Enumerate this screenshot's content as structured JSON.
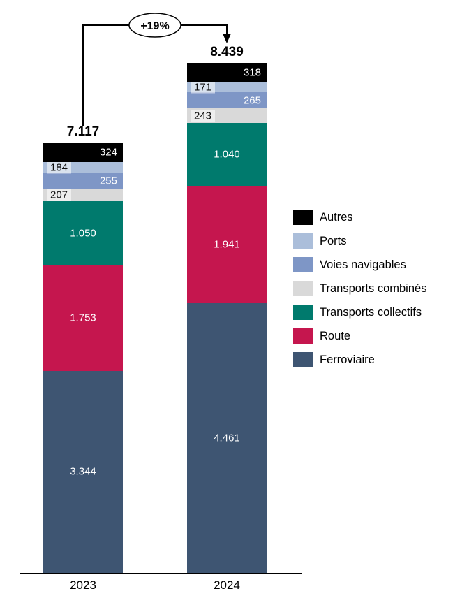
{
  "chart_data": {
    "type": "bar",
    "stacked": true,
    "title": "",
    "xlabel": "",
    "ylabel": "",
    "categories": [
      "2023",
      "2024"
    ],
    "totals": [
      "7.117",
      "8.439"
    ],
    "annotation": {
      "label": "+19%",
      "from": "2023",
      "to": "2024"
    },
    "series": [
      {
        "name": "Ferroviaire",
        "color": "#3e5572",
        "text_color": "#ffffff",
        "label_align": "center",
        "chip": false,
        "values": [
          3344,
          4461
        ],
        "labels": [
          "3.344",
          "4.461"
        ]
      },
      {
        "name": "Route",
        "color": "#c5164e",
        "text_color": "#ffffff",
        "label_align": "center",
        "chip": false,
        "values": [
          1753,
          1941
        ],
        "labels": [
          "1.753",
          "1.941"
        ]
      },
      {
        "name": "Transports collectifs",
        "color": "#007a6d",
        "text_color": "#ffffff",
        "label_align": "center",
        "chip": false,
        "values": [
          1050,
          1040
        ],
        "labels": [
          "1.050",
          "1.040"
        ]
      },
      {
        "name": "Transports combinés",
        "color": "#d9d9d9",
        "text_color": "#111111",
        "label_align": "left",
        "chip": true,
        "values": [
          207,
          243
        ],
        "labels": [
          "207",
          "243"
        ]
      },
      {
        "name": "Voies navigables",
        "color": "#7e96c6",
        "text_color": "#ffffff",
        "label_align": "right",
        "chip": false,
        "values": [
          255,
          265
        ],
        "labels": [
          "255",
          "265"
        ]
      },
      {
        "name": "Ports",
        "color": "#abbeda",
        "text_color": "#111111",
        "label_align": "left",
        "chip": true,
        "values": [
          184,
          171
        ],
        "labels": [
          "184",
          "171"
        ]
      },
      {
        "name": "Autres",
        "color": "#000000",
        "text_color": "#ffffff",
        "label_align": "right",
        "chip": false,
        "values": [
          324,
          318
        ],
        "labels": [
          "324",
          "318"
        ]
      }
    ],
    "legend": [
      "Autres",
      "Ports",
      "Voies navigables",
      "Transports combinés",
      "Transports collectifs",
      "Route",
      "Ferroviaire"
    ],
    "ylim": [
      0,
      8439
    ],
    "grid": false,
    "legend_position": "right"
  }
}
